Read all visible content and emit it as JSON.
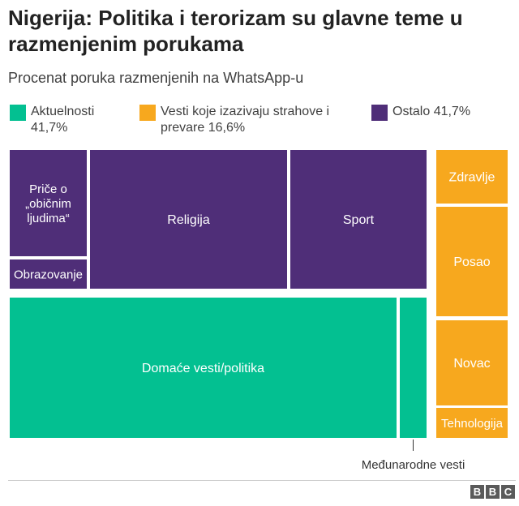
{
  "title": "Nigerija: Politika i terorizam su glavne teme u razmenjenim porukama",
  "subtitle": "Procenat poruka razmenjenih na WhatsApp-u",
  "legend": [
    {
      "label": "Aktuelnosti 41,7%",
      "color": "#03c091"
    },
    {
      "label": "Vesti koje izazivaju strahove i prevare 16,6%",
      "color": "#f7a81e"
    },
    {
      "label": "Ostalo 41,7%",
      "color": "#4f2e78"
    }
  ],
  "chart_data": {
    "type": "treemap",
    "groups": [
      {
        "name": "Aktuelnosti",
        "percent": 41.7,
        "color": "#03c091",
        "items": [
          "Domaće vesti/politika",
          "Međunarodne vesti"
        ]
      },
      {
        "name": "Vesti koje izazivaju strahove i prevare",
        "percent": 16.6,
        "color": "#f7a81e",
        "items": [
          "Zdravlje",
          "Posao",
          "Novac",
          "Tehnologija"
        ]
      },
      {
        "name": "Ostalo",
        "percent": 41.7,
        "color": "#4f2e78",
        "items": [
          "Priče o „običnim ljudima“",
          "Obrazovanje",
          "Religija",
          "Sport"
        ]
      }
    ],
    "tiles": [
      {
        "label": "Priče o „običnim ljudima“",
        "group": "Ostalo"
      },
      {
        "label": "Obrazovanje",
        "group": "Ostalo"
      },
      {
        "label": "Religija",
        "group": "Ostalo"
      },
      {
        "label": "Sport",
        "group": "Ostalo"
      },
      {
        "label": "Domaće vesti/politika",
        "group": "Aktuelnosti"
      },
      {
        "label": "Međunarodne vesti",
        "group": "Aktuelnosti"
      },
      {
        "label": "Zdravlje",
        "group": "Vesti koje izazivaju strahove i prevare"
      },
      {
        "label": "Posao",
        "group": "Vesti koje izazivaju strahove i prevare"
      },
      {
        "label": "Novac",
        "group": "Vesti koje izazivaju strahove i prevare"
      },
      {
        "label": "Tehnologija",
        "group": "Vesti koje izazivaju strahove i prevare"
      }
    ]
  },
  "source_logo": "BBC"
}
